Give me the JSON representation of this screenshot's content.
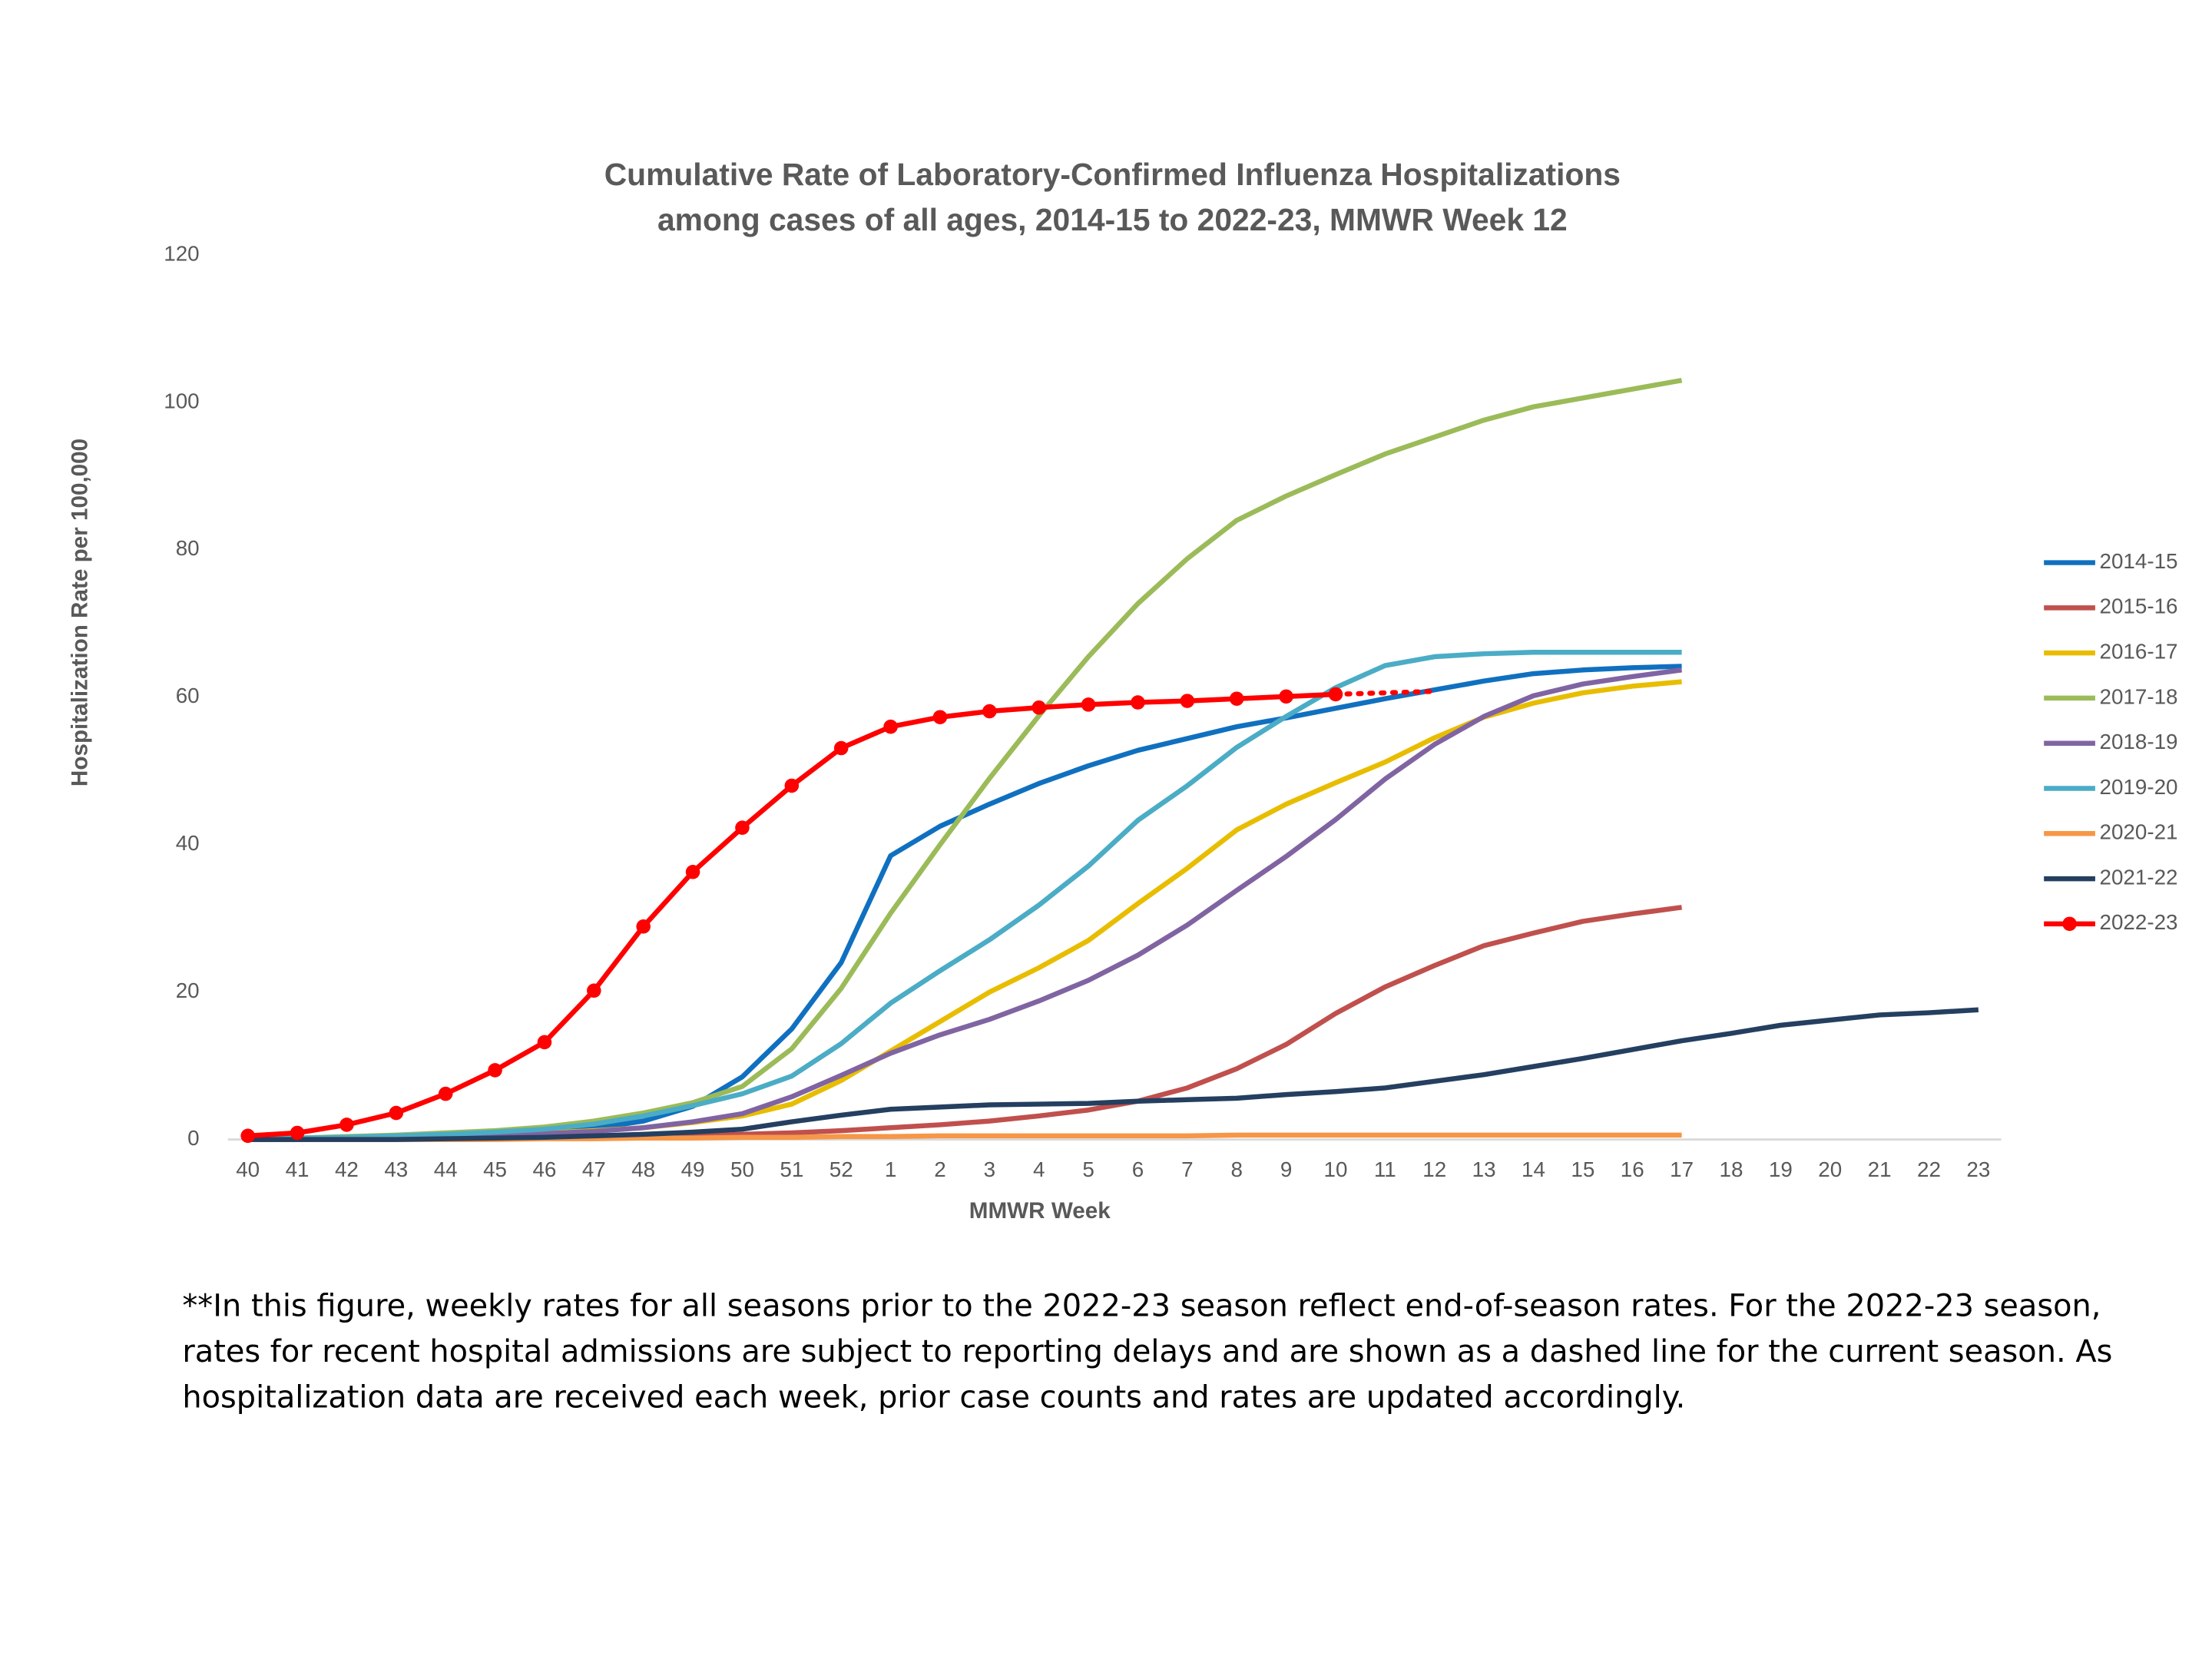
{
  "chart_data": {
    "type": "line",
    "title": [
      "Cumulative Rate of Laboratory-Confirmed Influenza Hospitalizations",
      "among cases of all ages, 2014-15 to 2022-23, MMWR Week 12"
    ],
    "x_label": "MMWR Week",
    "y_label": "Hospitalization Rate per 100,000",
    "categories": [
      "40",
      "41",
      "42",
      "43",
      "44",
      "45",
      "46",
      "47",
      "48",
      "49",
      "50",
      "51",
      "52",
      "1",
      "2",
      "3",
      "4",
      "5",
      "6",
      "7",
      "8",
      "9",
      "10",
      "11",
      "12",
      "13",
      "14",
      "15",
      "16",
      "17",
      "18",
      "19",
      "20",
      "21",
      "22",
      "23"
    ],
    "ylim": [
      0,
      120
    ],
    "yticks": [
      0,
      20,
      40,
      60,
      80,
      100,
      120
    ],
    "grid": false,
    "legend": "right",
    "series": [
      {
        "name": "2014-15",
        "color": "#1070c0",
        "values": [
          0,
          0.1,
          0.2,
          0.3,
          0.5,
          0.7,
          1.0,
          1.5,
          2.5,
          4.5,
          8.5,
          15,
          24,
          38.5,
          42.5,
          45.5,
          48.3,
          50.7,
          52.8,
          54.4,
          56,
          57.2,
          58.5,
          59.8,
          61,
          62.2,
          63.2,
          63.7,
          64,
          64.2,
          null,
          null,
          null,
          null,
          null,
          null
        ]
      },
      {
        "name": "2015-16",
        "color": "#c0504d",
        "values": [
          0,
          0,
          0.1,
          0.1,
          0.1,
          0.2,
          0.2,
          0.3,
          0.4,
          0.5,
          0.7,
          0.9,
          1.2,
          1.6,
          2.0,
          2.5,
          3.2,
          4.0,
          5.2,
          7.0,
          9.6,
          12.9,
          17.1,
          20.7,
          23.6,
          26.3,
          28,
          29.6,
          30.6,
          31.5,
          null,
          null,
          null,
          null,
          null,
          null
        ]
      },
      {
        "name": "2016-17",
        "color": "#e8bd00",
        "values": [
          0,
          0.1,
          0.2,
          0.3,
          0.5,
          0.7,
          0.9,
          1.2,
          1.6,
          2.3,
          3.2,
          4.8,
          8,
          12,
          16,
          20,
          23.3,
          27,
          32,
          36.8,
          42,
          45.5,
          48.4,
          51.2,
          54.5,
          57.3,
          59.2,
          60.6,
          61.5,
          62.1,
          null,
          null,
          null,
          null,
          null,
          null
        ]
      },
      {
        "name": "2017-18",
        "color": "#9bbb59",
        "values": [
          0,
          0.2,
          0.4,
          0.6,
          0.9,
          1.2,
          1.7,
          2.5,
          3.6,
          5,
          7.2,
          12.3,
          20.5,
          30.7,
          40,
          49,
          57.5,
          65.5,
          72.7,
          78.8,
          84,
          87.3,
          90.2,
          93,
          95.3,
          97.6,
          99.4,
          100.6,
          101.8,
          103,
          null,
          null,
          null,
          null,
          null,
          null
        ]
      },
      {
        "name": "2018-19",
        "color": "#8064a2",
        "values": [
          0,
          0.1,
          0.2,
          0.3,
          0.4,
          0.6,
          0.8,
          1.1,
          1.6,
          2.4,
          3.5,
          5.8,
          8.7,
          11.7,
          14.2,
          16.3,
          18.8,
          21.6,
          25,
          29.1,
          33.8,
          38.4,
          43.4,
          48.9,
          53.6,
          57.4,
          60.2,
          61.8,
          62.8,
          63.7,
          null,
          null,
          null,
          null,
          null,
          null
        ]
      },
      {
        "name": "2019-20",
        "color": "#4bacc6",
        "values": [
          0,
          0.2,
          0.3,
          0.5,
          0.7,
          1.0,
          1.4,
          2.1,
          3.2,
          4.6,
          6.2,
          8.6,
          13,
          18.5,
          22.9,
          27.1,
          31.8,
          37.1,
          43.3,
          48,
          53.2,
          57.4,
          61.3,
          64.3,
          65.5,
          65.9,
          66.1,
          66.1,
          66.1,
          66.1,
          null,
          null,
          null,
          null,
          null,
          null
        ]
      },
      {
        "name": "2020-21",
        "color": "#f79646",
        "values": [
          0,
          0,
          0,
          0,
          0,
          0,
          0.1,
          0.1,
          0.2,
          0.2,
          0.3,
          0.3,
          0.4,
          0.4,
          0.5,
          0.5,
          0.5,
          0.5,
          0.5,
          0.5,
          0.6,
          0.6,
          0.6,
          0.6,
          0.6,
          0.6,
          0.6,
          0.6,
          0.6,
          0.6,
          null,
          null,
          null,
          null,
          null,
          null
        ]
      },
      {
        "name": "2021-22",
        "color": "#243f60",
        "values": [
          0,
          0,
          0,
          0,
          0.1,
          0.2,
          0.3,
          0.5,
          0.7,
          1.0,
          1.4,
          2.4,
          3.3,
          4.1,
          4.4,
          4.7,
          4.8,
          4.9,
          5.2,
          5.4,
          5.6,
          6.1,
          6.5,
          7.0,
          7.9,
          8.8,
          9.9,
          11,
          12.2,
          13.4,
          14.4,
          15.5,
          16.2,
          16.9,
          17.2,
          17.6
        ]
      },
      {
        "name": "2022-23",
        "color": "#ff0000",
        "markers": true,
        "dashed_from_index": 22,
        "values": [
          0.5,
          0.9,
          2.0,
          3.6,
          6.2,
          9.4,
          13.2,
          20.2,
          28.9,
          36.3,
          42.3,
          48,
          53.1,
          56,
          57.3,
          58.1,
          58.6,
          59,
          59.3,
          59.5,
          59.8,
          60.1,
          60.4,
          60.6,
          60.8,
          null,
          null,
          null,
          null,
          null,
          null,
          null,
          null,
          null,
          null,
          null
        ]
      }
    ],
    "footnote": "**In this figure, weekly rates for all seasons prior to the 2022-23 season reflect end-of-season rates. For the 2022-23 season, rates for recent hospital admissions are subject to reporting delays and are shown as a dashed line for the current season. As hospitalization data are received each week, prior case counts and rates are updated accordingly."
  }
}
